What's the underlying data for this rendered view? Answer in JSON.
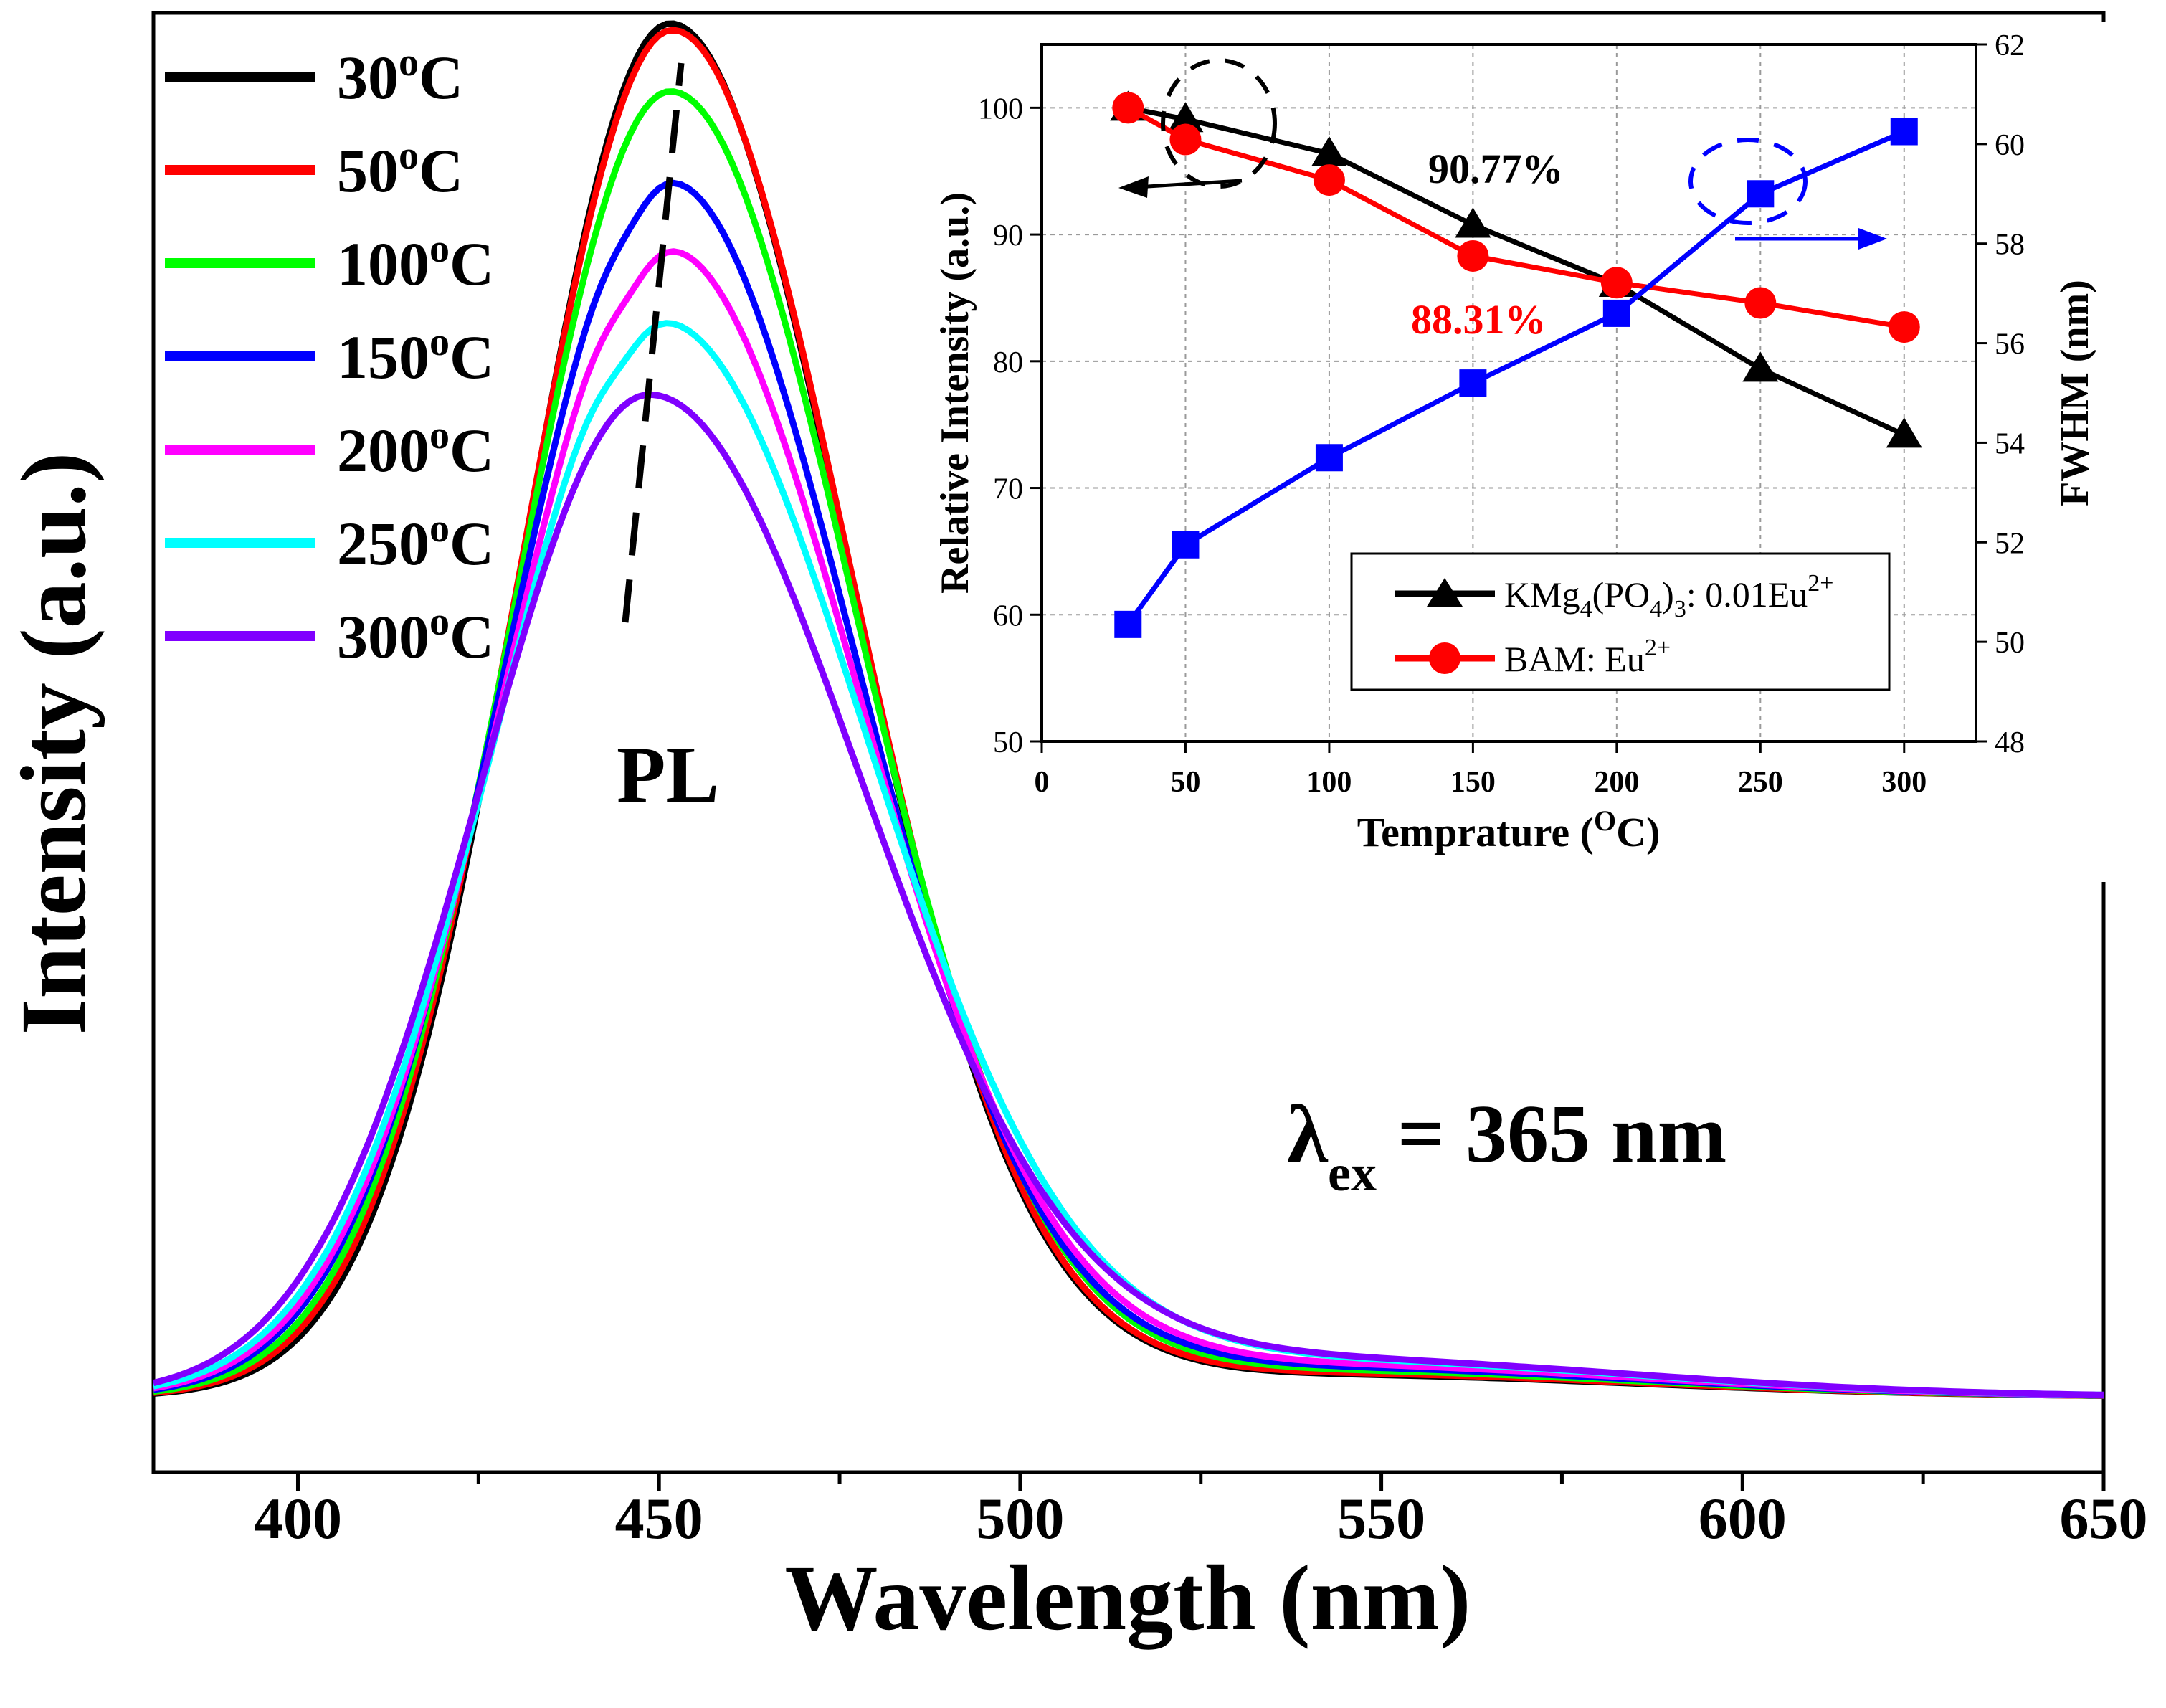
{
  "chart_data": [
    {
      "type": "line",
      "title": "",
      "xlabel": "Wavelength (nm)",
      "ylabel": "Intensity (a.u.)",
      "xlim": [
        380,
        650
      ],
      "ylim": [
        -0.055,
        1.01
      ],
      "xticks": [
        400,
        450,
        500,
        550,
        600,
        650
      ],
      "grid": false,
      "annotations": {
        "pl": "PL",
        "lambda": "λ",
        "lambda_sub": "ex",
        "lambda_rest": " = 365 nm"
      },
      "legend": {
        "position": "top-left",
        "entries": [
          {
            "label": "30",
            "sup": "o",
            "unit": "C"
          },
          {
            "label": "50",
            "sup": "o",
            "unit": "C"
          },
          {
            "label": "100",
            "sup": "o",
            "unit": "C"
          },
          {
            "label": "150",
            "sup": "o",
            "unit": "C"
          },
          {
            "label": "200",
            "sup": "o",
            "unit": "C"
          },
          {
            "label": "250",
            "sup": "o",
            "unit": "C"
          },
          {
            "label": "300",
            "sup": "o",
            "unit": "C"
          }
        ]
      },
      "series": [
        {
          "name": "30°C",
          "color": "#000000",
          "peak": 1.0,
          "center": 451.5,
          "sigma_left": 20.5,
          "sigma_right": 24.5,
          "tail": 0.016,
          "shoulder": 0.0
        },
        {
          "name": "50°C",
          "color": "#ff0000",
          "peak": 0.995,
          "center": 451.8,
          "sigma_left": 21.0,
          "sigma_right": 24.5,
          "tail": 0.017,
          "shoulder": 0.0
        },
        {
          "name": "100°C",
          "color": "#00ff00",
          "peak": 0.95,
          "center": 451.5,
          "sigma_left": 21.5,
          "sigma_right": 25.3,
          "tail": 0.019,
          "shoulder": 0.0
        },
        {
          "name": "150°C",
          "color": "#0000ff",
          "peak": 0.885,
          "center": 451.0,
          "sigma_left": 22.1,
          "sigma_right": 26.0,
          "tail": 0.021,
          "shoulder": 0.012
        },
        {
          "name": "200°C",
          "color": "#ff00ff",
          "peak": 0.835,
          "center": 450.8,
          "sigma_left": 22.6,
          "sigma_right": 26.8,
          "tail": 0.023,
          "shoulder": 0.014
        },
        {
          "name": "250°C",
          "color": "#00ffff",
          "peak": 0.782,
          "center": 450.0,
          "sigma_left": 23.0,
          "sigma_right": 28.6,
          "tail": 0.026,
          "shoulder": 0.012
        },
        {
          "name": "300°C",
          "color": "#8000ff",
          "peak": 0.728,
          "center": 448.5,
          "sigma_left": 23.4,
          "sigma_right": 29.4,
          "tail": 0.027,
          "shoulder": 0.0
        }
      ]
    },
    {
      "type": "line",
      "title": "",
      "xlabel": "Temprature (",
      "xlabel_sup": "O",
      "xlabel_end": "C)",
      "ylabel": "Relative Intensity (a.u.)",
      "ylabel_right": "FWHM (nm)",
      "xlim": [
        0,
        325
      ],
      "ylim": [
        50,
        105
      ],
      "ylim_right": [
        48,
        62
      ],
      "xticks": [
        0,
        50,
        100,
        150,
        200,
        250,
        300
      ],
      "yticks": [
        50,
        60,
        70,
        80,
        90,
        100
      ],
      "yticks_right": [
        48,
        50,
        52,
        54,
        56,
        58,
        60,
        62
      ],
      "grid": true,
      "annotations": {
        "black_value": "90.77%",
        "red_value": "88.31%"
      },
      "legend": {
        "position": "bottom-right",
        "entries": [
          {
            "parts": [
              "KMg",
              "4",
              "(PO",
              "4",
              ")",
              "3",
              ": 0.01Eu",
              "2+"
            ]
          },
          {
            "parts": [
              "BAM: Eu",
              "2+"
            ]
          }
        ]
      },
      "series": [
        {
          "name": "KMg4(PO4)3: 0.01Eu2+",
          "color": "#000000",
          "marker": "triangle",
          "axis": "left",
          "x": [
            30,
            50,
            100,
            150,
            200,
            250,
            300
          ],
          "y": [
            100,
            99.1,
            96.4,
            90.77,
            86.1,
            79.4,
            74.2
          ]
        },
        {
          "name": "BAM: Eu2+",
          "color": "#ff0000",
          "marker": "circle",
          "axis": "left",
          "x": [
            30,
            50,
            100,
            150,
            200,
            250,
            300
          ],
          "y": [
            100,
            97.5,
            94.3,
            88.31,
            86.2,
            84.6,
            82.7
          ]
        },
        {
          "name": "FWHM",
          "color": "#0000ff",
          "marker": "square",
          "axis": "right",
          "x": [
            30,
            50,
            100,
            150,
            200,
            250,
            300
          ],
          "y": [
            50.35,
            51.95,
            53.7,
            55.2,
            56.6,
            59.0,
            60.25
          ]
        }
      ]
    }
  ]
}
